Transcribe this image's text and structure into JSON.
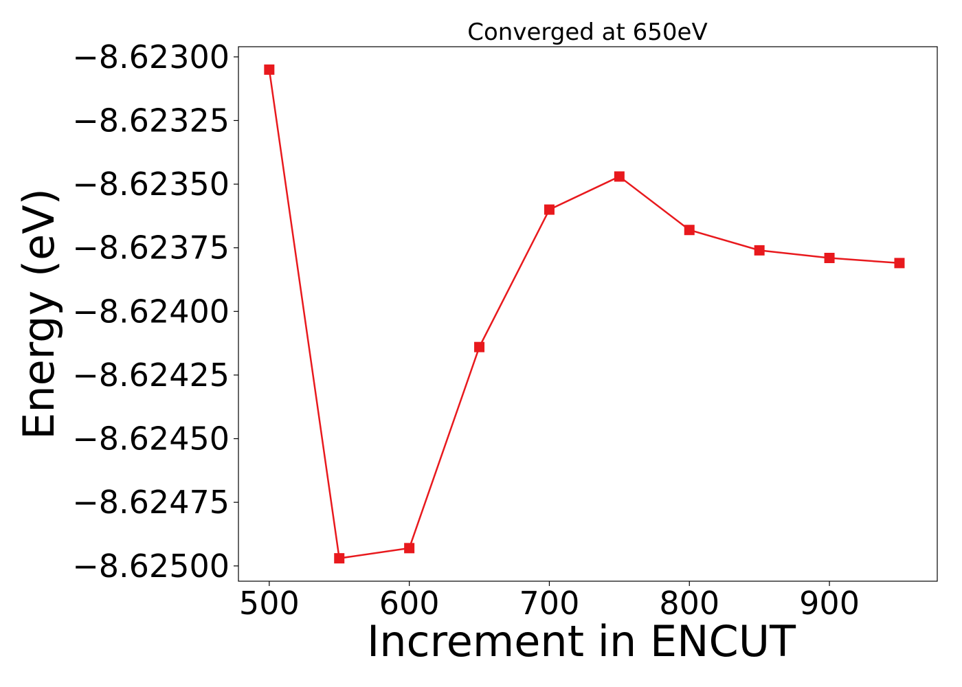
{
  "chart_data": {
    "type": "line",
    "title": "Converged at 650eV",
    "xlabel": "Increment in ENCUT",
    "ylabel": "Energy (eV)",
    "x": [
      500,
      550,
      600,
      650,
      700,
      750,
      800,
      850,
      900,
      950
    ],
    "series": [
      {
        "values": [
          -8.62305,
          -8.62497,
          -8.62493,
          -8.62414,
          -8.6236,
          -8.62347,
          -8.62368,
          -8.62376,
          -8.62379,
          -8.62381
        ],
        "color": "#e8191d",
        "marker": "square"
      }
    ],
    "xticks": [
      500,
      600,
      700,
      800,
      900
    ],
    "xtick_labels": [
      "500",
      "600",
      "700",
      "800",
      "900"
    ],
    "yticks": [
      -8.623,
      -8.62325,
      -8.6235,
      -8.62375,
      -8.624,
      -8.62425,
      -8.6245,
      -8.62475,
      -8.625
    ],
    "ytick_labels": [
      "−8.62300",
      "−8.62325",
      "−8.62350",
      "−8.62375",
      "−8.62400",
      "−8.62425",
      "−8.62450",
      "−8.62475",
      "−8.62500"
    ],
    "xlim": [
      478,
      977
    ],
    "ylim": [
      -8.62506,
      -8.62296
    ],
    "grid": false,
    "legend": "none"
  }
}
